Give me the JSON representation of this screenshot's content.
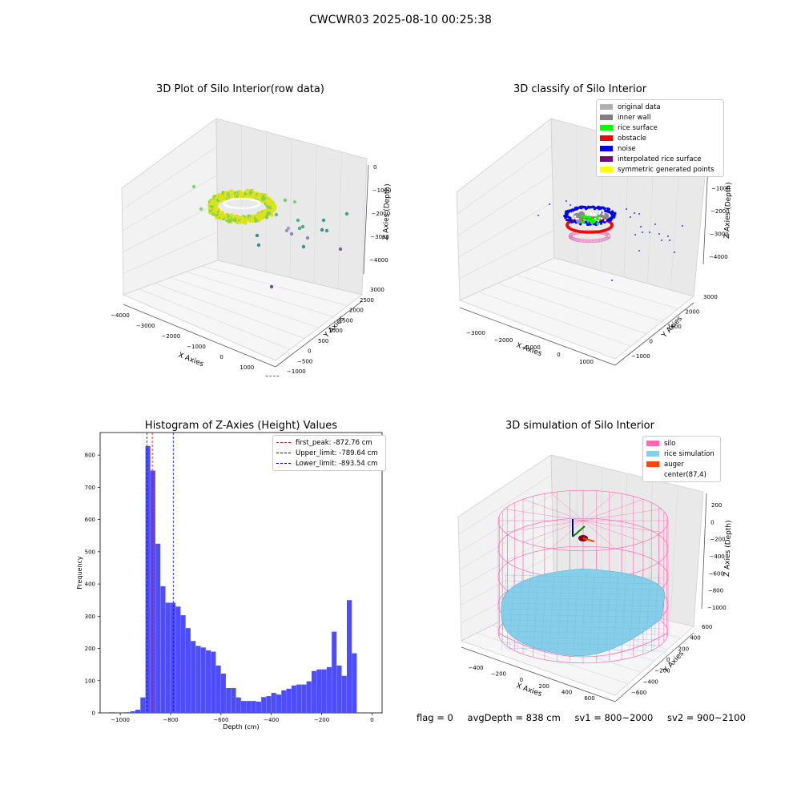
{
  "figure": {
    "suptitle": "CWCWR03 2025-08-10 00:25:38"
  },
  "footer": {
    "flag": "flag = 0",
    "avg_depth": "avgDepth = 838 cm",
    "sv1": "sv1 = 800~2000",
    "sv2": "sv2 = 900~2100"
  },
  "colors": {
    "histogram_bar": "#4d4dff",
    "first_peak": "#ff0000",
    "limits": "#0000ff",
    "silo": "#ff69b4",
    "rice_simulation": "#87ceeb",
    "auger": "#ff4500",
    "rice_yellow": "#dde21a",
    "rice_green": "#7fd34e"
  },
  "chart_data": [
    {
      "id": "raw",
      "type": "scatter",
      "title": "3D Plot of Silo Interior(row data)",
      "xlabel": "X Axies",
      "ylabel": "Y Axies",
      "zlabel": "Z Axies (Depth)",
      "x_ticks": [
        "−4000",
        "−3000",
        "−2000",
        "−1000",
        "0",
        "1000",
        "2000"
      ],
      "y_ticks": [
        "−1000",
        "−500",
        "0",
        "500",
        "1000",
        "1500",
        "2000",
        "2500",
        "3000"
      ],
      "z_ticks": [
        "0",
        "−1000",
        "−2000",
        "−3000",
        "−4000"
      ],
      "xlim": [
        -4000,
        2000
      ],
      "ylim": [
        -1000,
        3000
      ],
      "zlim": [
        -4500,
        0
      ]
    },
    {
      "id": "classify",
      "type": "scatter",
      "title": "3D classify of Silo Interior",
      "xlabel": "X Axies",
      "ylabel": "Y Axies",
      "zlabel": "Z Axies (Depth)",
      "x_ticks": [
        "−3000",
        "−2000",
        "−1000",
        "0",
        "1000"
      ],
      "y_ticks": [
        "−1000",
        "0",
        "1000",
        "2000",
        "3000"
      ],
      "z_ticks": [
        "0",
        "−1000",
        "−2000",
        "−3000",
        "−4000"
      ],
      "legend": [
        {
          "label": "original data",
          "color": "#b0b0b0"
        },
        {
          "label": "inner wall",
          "color": "#808080"
        },
        {
          "label": "rice surface",
          "color": "#00ff00"
        },
        {
          "label": "obstacle",
          "color": "#ff0000"
        },
        {
          "label": "noise",
          "color": "#0000ff"
        },
        {
          "label": "interpolated rice surface",
          "color": "#800080"
        },
        {
          "label": "symmetric generated points",
          "color": "#ffff00"
        }
      ],
      "legend_position": "top-right"
    },
    {
      "id": "hist",
      "type": "bar",
      "title": "Histogram of Z-Axies (Height) Values",
      "xlabel": "Depth (cm)",
      "ylabel": "Frequency",
      "xlim": [
        -1080,
        40
      ],
      "ylim": [
        0,
        870
      ],
      "x_ticks": [
        -1000,
        -800,
        -600,
        -400,
        -200,
        0
      ],
      "y_ticks": [
        0,
        100,
        200,
        300,
        400,
        500,
        600,
        700,
        800
      ],
      "bin_width": 20,
      "bin_start": -1060,
      "values": [
        0,
        2,
        0,
        0,
        2,
        5,
        10,
        48,
        828,
        752,
        525,
        393,
        342,
        342,
        330,
        303,
        263,
        223,
        208,
        203,
        194,
        190,
        147,
        122,
        77,
        77,
        48,
        37,
        37,
        37,
        35,
        49,
        52,
        62,
        57,
        70,
        75,
        85,
        88,
        88,
        98,
        130,
        135,
        135,
        142,
        252,
        147,
        115,
        350,
        185
      ],
      "lines": [
        {
          "label": "first_peak: -872.76 cm",
          "x": -872.76,
          "color": "#ff0000"
        },
        {
          "label": "Upper_limit: -789.64 cm",
          "x": -789.64,
          "color": "#0000ff"
        },
        {
          "label": "Lower_limit: -893.54 cm",
          "x": -893.54,
          "color": "#0000ff"
        }
      ],
      "legend_position": "top-right"
    },
    {
      "id": "sim",
      "type": "scatter",
      "title": "3D simulation of Silo Interior",
      "xlabel": "X Axies",
      "ylabel": "Y Axies",
      "zlabel": "Z Axies (Depth)",
      "x_ticks": [
        "−400",
        "−200",
        "0",
        "200",
        "400",
        "600"
      ],
      "y_ticks": [
        "−600",
        "−400",
        "−200",
        "0",
        "200",
        "400",
        "600"
      ],
      "z_ticks": [
        "200",
        "0",
        "−200",
        "−400",
        "−600",
        "−800",
        "−1000"
      ],
      "legend": [
        {
          "label": "silo",
          "color": "#ff69b4"
        },
        {
          "label": "rice simulation",
          "color": "#87ceeb"
        },
        {
          "label": "auger",
          "color": "#ff4500"
        },
        {
          "label": "center(87,4)",
          "color": "#ffffff"
        }
      ],
      "legend_position": "top-right"
    }
  ]
}
